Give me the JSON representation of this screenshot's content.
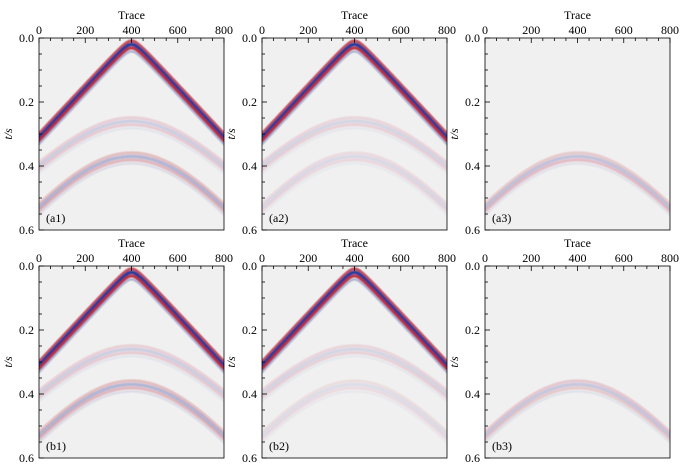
{
  "colors": {
    "background": "#f0f0f0",
    "positive": "#b2182b",
    "negative": "#2c3d99",
    "frame": "#000000"
  },
  "chart_data": [
    {
      "type": "heatmap",
      "panel": "(a1)",
      "xlabel": "Trace",
      "ylabel": "t/s",
      "x_ticks": [
        0,
        200,
        400,
        600,
        800
      ],
      "y_ticks": [
        0.0,
        0.2,
        0.4,
        0.6
      ],
      "xlim": [
        0,
        800
      ],
      "ylim": [
        0.0,
        0.6
      ],
      "events": [
        {
          "kind": "direct",
          "apex_trace": 400,
          "t0": 0.02,
          "t_at_edge": 0.31,
          "amplitude": 1.0
        },
        {
          "kind": "reflection",
          "apex_trace": 400,
          "t0": 0.26,
          "t_at_edge": 0.4,
          "amplitude": 0.18
        },
        {
          "kind": "reflection",
          "apex_trace": 400,
          "t0": 0.37,
          "t_at_edge": 0.53,
          "amplitude": 0.32
        }
      ]
    },
    {
      "type": "heatmap",
      "panel": "(a2)",
      "xlabel": "Trace",
      "ylabel": "t/s",
      "x_ticks": [
        0,
        200,
        400,
        600,
        800
      ],
      "y_ticks": [
        0.0,
        0.2,
        0.4,
        0.6
      ],
      "xlim": [
        0,
        800
      ],
      "ylim": [
        0.0,
        0.6
      ],
      "events": [
        {
          "kind": "direct",
          "apex_trace": 400,
          "t0": 0.02,
          "t_at_edge": 0.31,
          "amplitude": 1.0
        },
        {
          "kind": "reflection",
          "apex_trace": 400,
          "t0": 0.26,
          "t_at_edge": 0.4,
          "amplitude": 0.15
        },
        {
          "kind": "reflection",
          "apex_trace": 400,
          "t0": 0.37,
          "t_at_edge": 0.53,
          "amplitude": 0.12
        }
      ]
    },
    {
      "type": "heatmap",
      "panel": "(a3)",
      "xlabel": "Trace",
      "ylabel": "t/s",
      "x_ticks": [
        0,
        200,
        400,
        600,
        800
      ],
      "y_ticks": [
        0.0,
        0.2,
        0.4,
        0.6
      ],
      "xlim": [
        0,
        800
      ],
      "ylim": [
        0.0,
        0.6
      ],
      "events": [
        {
          "kind": "reflection",
          "apex_trace": 400,
          "t0": 0.37,
          "t_at_edge": 0.53,
          "amplitude": 0.25
        }
      ]
    },
    {
      "type": "heatmap",
      "panel": "(b1)",
      "xlabel": "Trace",
      "ylabel": "t/s",
      "x_ticks": [
        0,
        200,
        400,
        600,
        800
      ],
      "y_ticks": [
        0.0,
        0.2,
        0.4,
        0.6
      ],
      "xlim": [
        0,
        800
      ],
      "ylim": [
        0.0,
        0.6
      ],
      "events": [
        {
          "kind": "direct",
          "apex_trace": 400,
          "t0": 0.02,
          "t_at_edge": 0.31,
          "amplitude": 1.0
        },
        {
          "kind": "reflection",
          "apex_trace": 400,
          "t0": 0.26,
          "t_at_edge": 0.4,
          "amplitude": 0.18
        },
        {
          "kind": "reflection",
          "apex_trace": 400,
          "t0": 0.37,
          "t_at_edge": 0.53,
          "amplitude": 0.32
        }
      ]
    },
    {
      "type": "heatmap",
      "panel": "(b2)",
      "xlabel": "Trace",
      "ylabel": "t/s",
      "x_ticks": [
        0,
        200,
        400,
        600,
        800
      ],
      "y_ticks": [
        0.0,
        0.2,
        0.4,
        0.6
      ],
      "xlim": [
        0,
        800
      ],
      "ylim": [
        0.0,
        0.6
      ],
      "events": [
        {
          "kind": "direct",
          "apex_trace": 400,
          "t0": 0.02,
          "t_at_edge": 0.31,
          "amplitude": 1.0
        },
        {
          "kind": "reflection",
          "apex_trace": 400,
          "t0": 0.26,
          "t_at_edge": 0.4,
          "amplitude": 0.15
        },
        {
          "kind": "reflection",
          "apex_trace": 400,
          "t0": 0.37,
          "t_at_edge": 0.53,
          "amplitude": 0.1
        }
      ]
    },
    {
      "type": "heatmap",
      "panel": "(b3)",
      "xlabel": "Trace",
      "ylabel": "t/s",
      "x_ticks": [
        0,
        200,
        400,
        600,
        800
      ],
      "y_ticks": [
        0.0,
        0.2,
        0.4,
        0.6
      ],
      "xlim": [
        0,
        800
      ],
      "ylim": [
        0.0,
        0.6
      ],
      "events": [
        {
          "kind": "reflection",
          "apex_trace": 400,
          "t0": 0.37,
          "t_at_edge": 0.53,
          "amplitude": 0.22
        }
      ]
    }
  ]
}
